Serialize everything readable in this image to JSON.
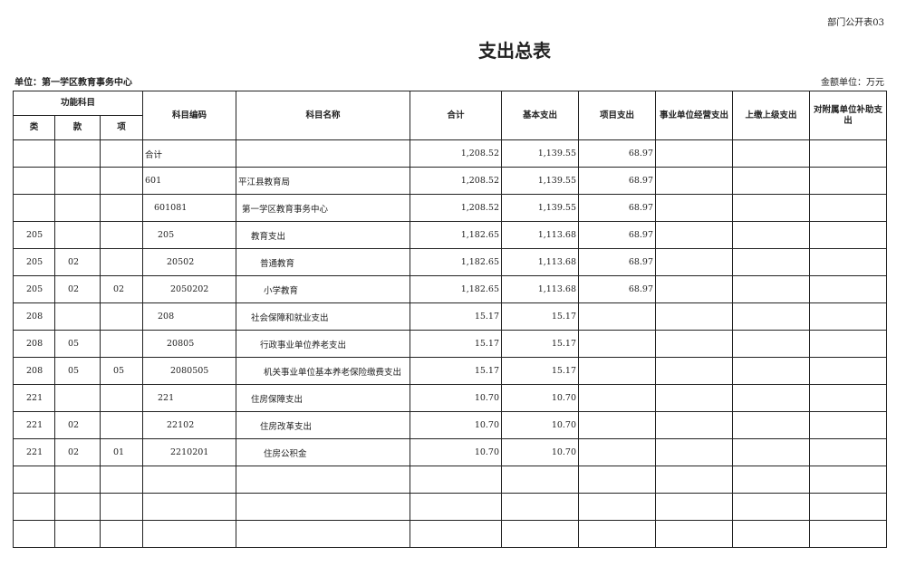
{
  "form_number": "部门公开表03",
  "title": "支出总表",
  "unit": "单位：第一学区教育事务中心",
  "amount_unit": "金额单位：万元",
  "headers": {
    "function_subject": "功能科目",
    "lei": "类",
    "kuan": "款",
    "xiang": "项",
    "code": "科目编码",
    "name": "科目名称",
    "total": "合计",
    "basic": "基本支出",
    "project": "项目支出",
    "business": "事业单位经营支出",
    "upper": "上缴上级支出",
    "subsidiary": "对附属单位补助支出"
  },
  "rows": [
    {
      "lei": "",
      "kuan": "",
      "xiang": "",
      "code": "合计",
      "name": "",
      "total": "1,208.52",
      "basic": "1,139.55",
      "project": "68.97",
      "business": "",
      "upper": "",
      "subsidiary": "",
      "level": 0
    },
    {
      "lei": "",
      "kuan": "",
      "xiang": "",
      "code": "601",
      "name": "平江县教育局",
      "total": "1,208.52",
      "basic": "1,139.55",
      "project": "68.97",
      "business": "",
      "upper": "",
      "subsidiary": "",
      "level": 0
    },
    {
      "lei": "",
      "kuan": "",
      "xiang": "",
      "code": "601081",
      "name": "第一学区教育事务中心",
      "total": "1,208.52",
      "basic": "1,139.55",
      "project": "68.97",
      "business": "",
      "upper": "",
      "subsidiary": "",
      "level": 1
    },
    {
      "lei": "205",
      "kuan": "",
      "xiang": "",
      "code": "205",
      "name": "教育支出",
      "total": "1,182.65",
      "basic": "1,113.68",
      "project": "68.97",
      "business": "",
      "upper": "",
      "subsidiary": "",
      "level": 2
    },
    {
      "lei": "205",
      "kuan": "02",
      "xiang": "",
      "code": "20502",
      "name": "普通教育",
      "total": "1,182.65",
      "basic": "1,113.68",
      "project": "68.97",
      "business": "",
      "upper": "",
      "subsidiary": "",
      "level": 3
    },
    {
      "lei": "205",
      "kuan": "02",
      "xiang": "02",
      "code": "2050202",
      "name": "小学教育",
      "total": "1,182.65",
      "basic": "1,113.68",
      "project": "68.97",
      "business": "",
      "upper": "",
      "subsidiary": "",
      "level": 4
    },
    {
      "lei": "208",
      "kuan": "",
      "xiang": "",
      "code": "208",
      "name": "社会保障和就业支出",
      "total": "15.17",
      "basic": "15.17",
      "project": "",
      "business": "",
      "upper": "",
      "subsidiary": "",
      "level": 2
    },
    {
      "lei": "208",
      "kuan": "05",
      "xiang": "",
      "code": "20805",
      "name": "行政事业单位养老支出",
      "total": "15.17",
      "basic": "15.17",
      "project": "",
      "business": "",
      "upper": "",
      "subsidiary": "",
      "level": 3
    },
    {
      "lei": "208",
      "kuan": "05",
      "xiang": "05",
      "code": "2080505",
      "name": "机关事业单位基本养老保险缴费支出",
      "total": "15.17",
      "basic": "15.17",
      "project": "",
      "business": "",
      "upper": "",
      "subsidiary": "",
      "level": 4
    },
    {
      "lei": "221",
      "kuan": "",
      "xiang": "",
      "code": "221",
      "name": "住房保障支出",
      "total": "10.70",
      "basic": "10.70",
      "project": "",
      "business": "",
      "upper": "",
      "subsidiary": "",
      "level": 2
    },
    {
      "lei": "221",
      "kuan": "02",
      "xiang": "",
      "code": "22102",
      "name": "住房改革支出",
      "total": "10.70",
      "basic": "10.70",
      "project": "",
      "business": "",
      "upper": "",
      "subsidiary": "",
      "level": 3
    },
    {
      "lei": "221",
      "kuan": "02",
      "xiang": "01",
      "code": "2210201",
      "name": "住房公积金",
      "total": "10.70",
      "basic": "10.70",
      "project": "",
      "business": "",
      "upper": "",
      "subsidiary": "",
      "level": 4
    },
    {
      "lei": "",
      "kuan": "",
      "xiang": "",
      "code": "",
      "name": "",
      "total": "",
      "basic": "",
      "project": "",
      "business": "",
      "upper": "",
      "subsidiary": "",
      "level": 0
    },
    {
      "lei": "",
      "kuan": "",
      "xiang": "",
      "code": "",
      "name": "",
      "total": "",
      "basic": "",
      "project": "",
      "business": "",
      "upper": "",
      "subsidiary": "",
      "level": 0
    },
    {
      "lei": "",
      "kuan": "",
      "xiang": "",
      "code": "",
      "name": "",
      "total": "",
      "basic": "",
      "project": "",
      "business": "",
      "upper": "",
      "subsidiary": "",
      "level": 0
    }
  ]
}
